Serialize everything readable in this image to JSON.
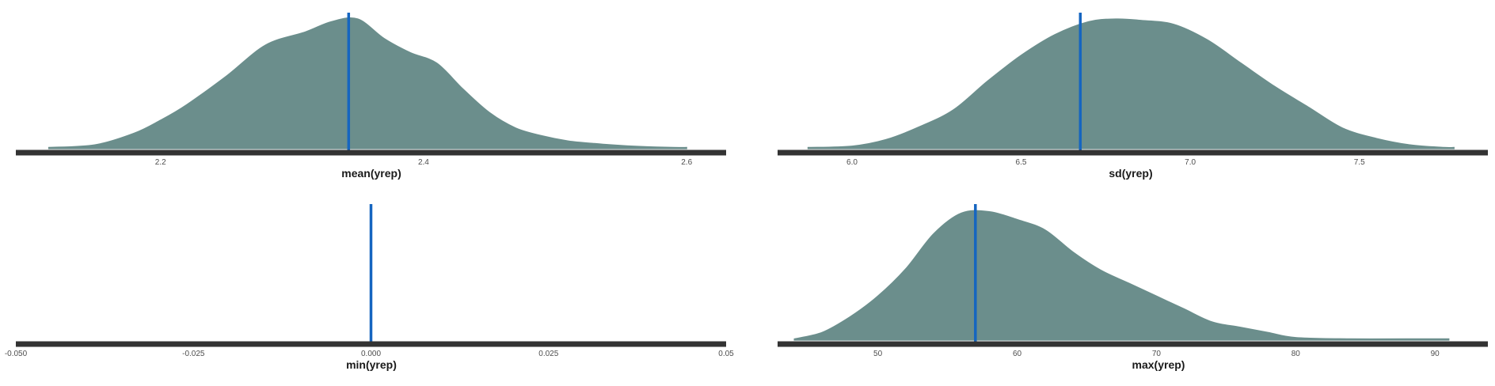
{
  "colors": {
    "density_fill": "#6b8e8c",
    "observed_line": "#1565c0",
    "axis_line": "#333333"
  },
  "chart_data": [
    {
      "type": "area",
      "xlabel": "mean(yrep)",
      "xlim": [
        2.09,
        2.63
      ],
      "ticks": [
        {
          "value": 2.2,
          "label": "2.2"
        },
        {
          "value": 2.4,
          "label": "2.4"
        },
        {
          "value": 2.6,
          "label": "2.6"
        }
      ],
      "observed": 2.343,
      "density": {
        "x": [
          2.115,
          2.15,
          2.18,
          2.2,
          2.22,
          2.25,
          2.28,
          2.31,
          2.33,
          2.35,
          2.37,
          2.39,
          2.41,
          2.43,
          2.45,
          2.47,
          2.49,
          2.51,
          2.53,
          2.55,
          2.57,
          2.59,
          2.6
        ],
        "y": [
          0.01,
          0.03,
          0.12,
          0.22,
          0.34,
          0.56,
          0.8,
          0.9,
          0.98,
          1.0,
          0.85,
          0.74,
          0.66,
          0.46,
          0.28,
          0.16,
          0.1,
          0.06,
          0.04,
          0.025,
          0.015,
          0.01,
          0.01
        ]
      }
    },
    {
      "type": "area",
      "xlabel": "sd(yrep)",
      "xlim": [
        5.78,
        7.88
      ],
      "ticks": [
        {
          "value": 6.0,
          "label": "6.0"
        },
        {
          "value": 6.5,
          "label": "6.5"
        },
        {
          "value": 7.0,
          "label": "7.0"
        },
        {
          "value": 7.5,
          "label": "7.5"
        }
      ],
      "observed": 6.675,
      "density": {
        "x": [
          5.87,
          6.0,
          6.1,
          6.2,
          6.3,
          6.4,
          6.5,
          6.6,
          6.7,
          6.78,
          6.85,
          6.95,
          7.05,
          7.15,
          7.25,
          7.35,
          7.45,
          7.55,
          7.65,
          7.75,
          7.78
        ],
        "y": [
          0.01,
          0.02,
          0.07,
          0.17,
          0.3,
          0.52,
          0.72,
          0.88,
          0.98,
          1.0,
          0.99,
          0.96,
          0.84,
          0.66,
          0.48,
          0.32,
          0.16,
          0.08,
          0.03,
          0.01,
          0.01
        ]
      }
    },
    {
      "type": "area",
      "xlabel": "min(yrep)",
      "xlim": [
        -0.05,
        0.05
      ],
      "ticks": [
        {
          "value": -0.05,
          "label": "-0.050"
        },
        {
          "value": -0.025,
          "label": "-0.025"
        },
        {
          "value": 0.0,
          "label": "0.000"
        },
        {
          "value": 0.025,
          "label": "0.025"
        },
        {
          "value": 0.05,
          "label": "0.05"
        }
      ],
      "observed": 0.0,
      "density": null
    },
    {
      "type": "area",
      "xlabel": "max(yrep)",
      "xlim": [
        42.8,
        93.8
      ],
      "ticks": [
        {
          "value": 50,
          "label": "50"
        },
        {
          "value": 60,
          "label": "60"
        },
        {
          "value": 70,
          "label": "70"
        },
        {
          "value": 80,
          "label": "80"
        },
        {
          "value": 90,
          "label": "90"
        }
      ],
      "observed": 57.0,
      "density": {
        "x": [
          44,
          46,
          48,
          50,
          52,
          54,
          56,
          58,
          60,
          62,
          64,
          66,
          68,
          70,
          72,
          74,
          76,
          78,
          80,
          84,
          88,
          91
        ],
        "y": [
          0.01,
          0.06,
          0.18,
          0.34,
          0.55,
          0.82,
          0.98,
          0.99,
          0.93,
          0.85,
          0.68,
          0.54,
          0.44,
          0.34,
          0.24,
          0.14,
          0.1,
          0.06,
          0.02,
          0.01,
          0.01,
          0.01
        ]
      }
    }
  ]
}
